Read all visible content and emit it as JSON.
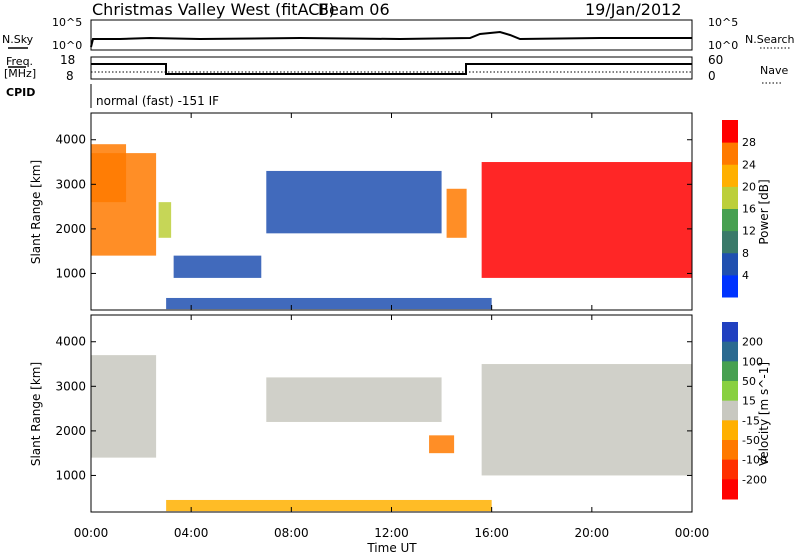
{
  "header": {
    "station": "Christmas Valley West (fitACF)",
    "beam": "Beam 06",
    "date": "19/Jan/2012"
  },
  "top_panel": {
    "left_label": "N.Sky",
    "left_ticks": [
      "10^5",
      "10^0"
    ],
    "right_label": "N.Search",
    "right_ticks": [
      "10^5",
      "10^0"
    ]
  },
  "freq_panel": {
    "left_label_line1": "Freq.",
    "left_label_line2": "[MHz]",
    "left_ticks": [
      "18",
      "8"
    ],
    "right_label": "Nave",
    "right_ticks": [
      "60",
      "0"
    ],
    "cpid_label": "CPID",
    "mode_text": "normal (fast) -151 IF"
  },
  "chart_data": [
    {
      "type": "heatmap",
      "title": "Power",
      "xlabel": "",
      "ylabel": "Slant Range [km]",
      "x_ticks": [
        "00:00",
        "04:00",
        "08:00",
        "12:00",
        "16:00",
        "20:00",
        "00:00"
      ],
      "y_ticks": [
        1000,
        2000,
        3000,
        4000
      ],
      "xlim_hours": [
        0,
        24
      ],
      "ylim_km": [
        180,
        4600
      ],
      "colorbar_label": "Power [dB]",
      "colorbar_ticks": [
        4,
        8,
        12,
        16,
        20,
        24,
        28
      ],
      "colorbar_colors": [
        "#0033ff",
        "#2050b0",
        "#3a7a6a",
        "#46a050",
        "#bccf3a",
        "#ffb000",
        "#ff7a00",
        "#ff0000"
      ],
      "echo_regions": [
        {
          "t_start": 0.0,
          "t_end": 2.6,
          "r_start": 1400,
          "r_end": 3700,
          "value": 26
        },
        {
          "t_start": 0.0,
          "t_end": 1.4,
          "r_start": 2600,
          "r_end": 3900,
          "value": 24
        },
        {
          "t_start": 2.7,
          "t_end": 3.2,
          "r_start": 1800,
          "r_end": 2600,
          "value": 18
        },
        {
          "t_start": 3.3,
          "t_end": 6.8,
          "r_start": 900,
          "r_end": 1400,
          "value": 6
        },
        {
          "t_start": 7.0,
          "t_end": 14.0,
          "r_start": 1900,
          "r_end": 3300,
          "value": 5
        },
        {
          "t_start": 14.2,
          "t_end": 15.0,
          "r_start": 1800,
          "r_end": 2900,
          "value": 26
        },
        {
          "t_start": 3.0,
          "t_end": 16.0,
          "r_start": 200,
          "r_end": 450,
          "value": 6
        },
        {
          "t_start": 15.6,
          "t_end": 24.0,
          "r_start": 900,
          "r_end": 3500,
          "value": 29
        }
      ]
    },
    {
      "type": "heatmap",
      "title": "Velocity",
      "xlabel": "Time UT",
      "ylabel": "Slant Range [km]",
      "x_ticks": [
        "00:00",
        "04:00",
        "08:00",
        "12:00",
        "16:00",
        "20:00",
        "00:00"
      ],
      "y_ticks": [
        1000,
        2000,
        3000,
        4000
      ],
      "xlim_hours": [
        0,
        24
      ],
      "ylim_km": [
        180,
        4600
      ],
      "colorbar_label": "Velocity [m s^-1]",
      "colorbar_ticks": [
        200,
        100,
        50,
        15,
        -15,
        -50,
        -100,
        -200
      ],
      "colorbar_colors": [
        "#2040c0",
        "#2a6a90",
        "#46a050",
        "#88d040",
        "#c8c8c0",
        "#ffb000",
        "#ff7a00",
        "#ff3000",
        "#ff0000"
      ],
      "echo_regions": [
        {
          "t_start": 0.0,
          "t_end": 2.6,
          "r_start": 1400,
          "r_end": 3700,
          "value": 0
        },
        {
          "t_start": 7.0,
          "t_end": 14.0,
          "r_start": 2200,
          "r_end": 3200,
          "value": 0
        },
        {
          "t_start": 13.5,
          "t_end": 14.5,
          "r_start": 1500,
          "r_end": 1900,
          "value": -60
        },
        {
          "t_start": 3.0,
          "t_end": 16.0,
          "r_start": 200,
          "r_end": 450,
          "value": -40
        },
        {
          "t_start": 15.6,
          "t_end": 24.0,
          "r_start": 1000,
          "r_end": 3500,
          "value": 0
        }
      ]
    }
  ]
}
